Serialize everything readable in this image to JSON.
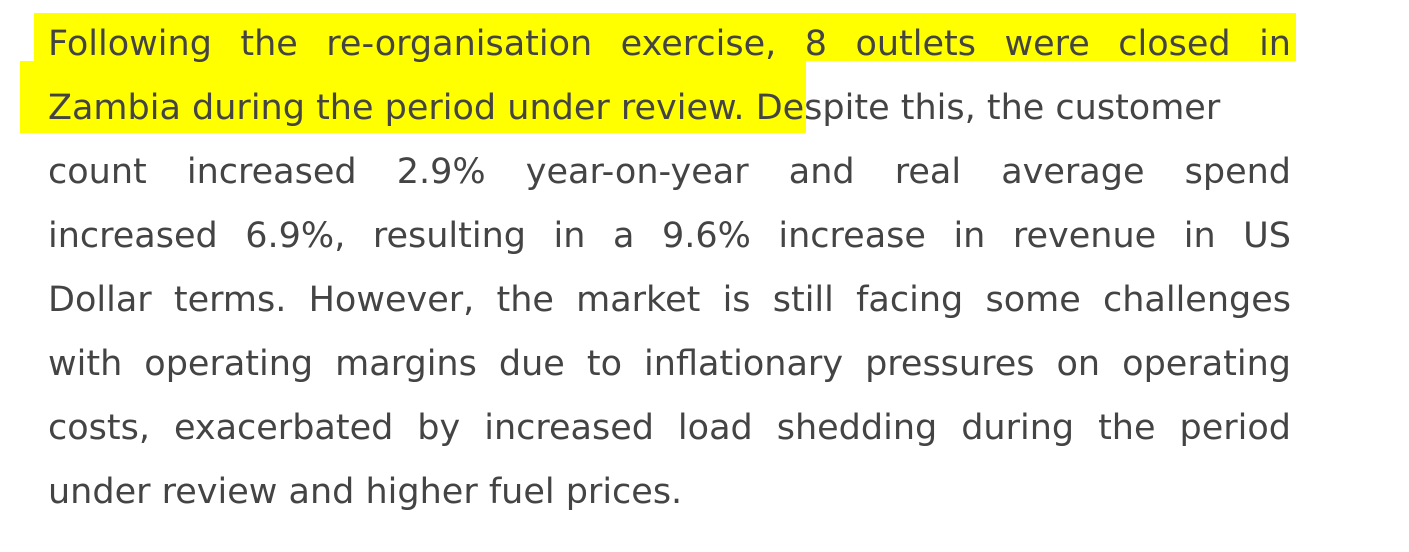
{
  "document": {
    "paragraph": {
      "highlight_color": "#ffff00",
      "text_color": "#444444",
      "lines": [
        "Following the re-organisation exercise, 8 outlets were closed in",
        "Zambia during the period under review.",
        " Despite this, the customer",
        "count increased 2.9% year-on-year and real average spend",
        "increased 6.9%, resulting in a 9.6% increase in revenue in US",
        "Dollar terms. However, the market is still facing some challenges",
        "with operating margins due to inflationary pressures on operating",
        "costs, exacerbated by increased load shedding during the period",
        "under review and higher fuel prices."
      ]
    }
  }
}
